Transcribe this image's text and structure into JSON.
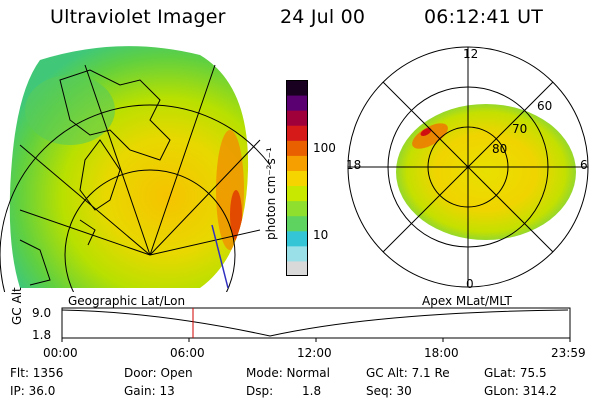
{
  "header": {
    "instrument": "Ultraviolet Imager",
    "date": "24 Jul 00",
    "time": "06:12:41 UT"
  },
  "colorbar": {
    "unit_label": "photon cm⁻²s⁻¹",
    "tick_100": "100",
    "tick_10": "10",
    "colors": [
      "#d9d9d9",
      "#9ae0e8",
      "#34c6d6",
      "#5fd35f",
      "#8fe02e",
      "#c8e800",
      "#f5d400",
      "#f5a000",
      "#e86000",
      "#d61a1a",
      "#a0003a",
      "#5a0070",
      "#1a0020"
    ]
  },
  "polar_plot": {
    "mlt_12": "12",
    "mlt_18": "18",
    "mlt_6": "6",
    "mlt_0": "0",
    "lat_60": "60",
    "lat_70": "70",
    "lat_80": "80",
    "caption": "Apex MLat/MLT"
  },
  "geo_plot": {
    "caption": "Geographic Lat/Lon"
  },
  "timeline": {
    "axis_label": "GC Alt",
    "y_top": "9.0",
    "y_bottom": "1.8",
    "x_ticks": [
      "00:00",
      "06:00",
      "12:00",
      "18:00",
      "23:59"
    ],
    "current_time_marker": "06:12:41",
    "marker_color": "#d00000"
  },
  "status": {
    "flt": "Flt: 1356",
    "ip": "IP: 36.0",
    "door": "Door: Open",
    "gain": "Gain: 13",
    "mode": "Mode: Normal",
    "dsp_label": "Dsp:",
    "dsp_value": "1.8",
    "gc_alt": "GC Alt: 7.1 Re",
    "seq": "Seq: 30",
    "glat": "GLat:  75.5",
    "glon": "GLon: 314.2"
  }
}
